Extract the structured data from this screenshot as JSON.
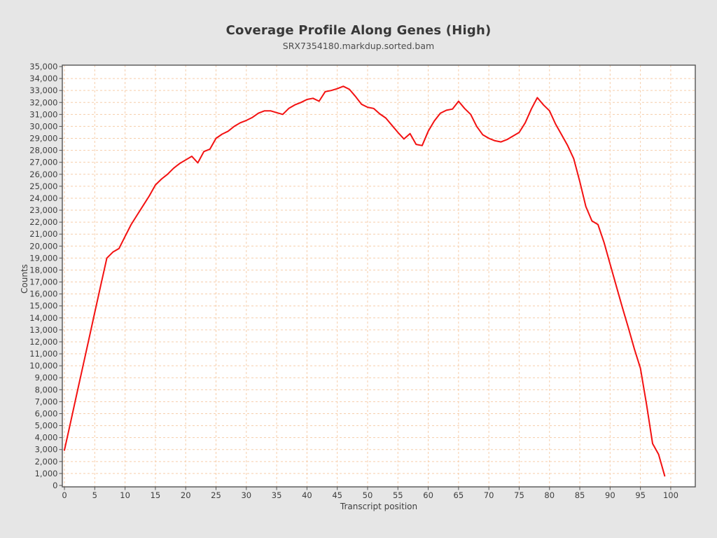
{
  "colors": {
    "page_background": "#e6e6e6",
    "plot_background": "#ffffff",
    "plot_border": "#545454",
    "grid": "#f6cdaa",
    "line": "#f31111",
    "text": "#3e3e3e"
  },
  "chart_data": {
    "type": "line",
    "title": "Coverage Profile Along Genes (High)",
    "subtitle": "SRX7354180.markdup.sorted.bam",
    "xlabel": "Transcript position",
    "ylabel": "Counts",
    "xlim": [
      -0.35,
      104.05
    ],
    "ylim": [
      0,
      35000
    ],
    "x_ticks": [
      0,
      5,
      10,
      15,
      20,
      25,
      30,
      35,
      40,
      45,
      50,
      55,
      60,
      65,
      70,
      75,
      80,
      85,
      90,
      95,
      100
    ],
    "y_tick_step": 1000,
    "grid": {
      "show": true,
      "style": "dashed"
    },
    "legend_position": "none",
    "series": [
      {
        "color": "#f31111",
        "x": [
          0,
          1,
          2,
          3,
          4,
          5,
          6,
          7,
          8,
          9,
          10,
          11,
          12,
          13,
          14,
          15,
          16,
          17,
          18,
          19,
          20,
          21,
          22,
          23,
          24,
          25,
          26,
          27,
          28,
          29,
          30,
          31,
          32,
          33,
          34,
          35,
          36,
          37,
          38,
          39,
          40,
          41,
          42,
          43,
          44,
          45,
          46,
          47,
          48,
          49,
          50,
          51,
          52,
          53,
          54,
          55,
          56,
          57,
          58,
          59,
          60,
          61,
          62,
          63,
          64,
          65,
          66,
          67,
          68,
          69,
          70,
          71,
          72,
          73,
          74,
          75,
          76,
          77,
          78,
          79,
          80,
          81,
          82,
          83,
          84,
          85,
          86,
          87,
          88,
          89,
          90,
          91,
          92,
          93,
          94,
          95,
          96,
          97,
          98,
          99
        ],
        "values": [
          2950,
          5250,
          7550,
          9850,
          12150,
          14450,
          16750,
          19000,
          19500,
          19800,
          20800,
          21800,
          22600,
          23400,
          24200,
          25100,
          25600,
          26000,
          26500,
          26900,
          27200,
          27500,
          26950,
          27900,
          28100,
          29000,
          29350,
          29600,
          30000,
          30300,
          30500,
          30750,
          31100,
          31300,
          31300,
          31150,
          31000,
          31500,
          31800,
          32000,
          32250,
          32350,
          32100,
          32900,
          33000,
          33150,
          33350,
          33100,
          32500,
          31850,
          31600,
          31500,
          31050,
          30700,
          30100,
          29500,
          28950,
          29400,
          28500,
          28400,
          29600,
          30450,
          31100,
          31350,
          31450,
          32100,
          31500,
          31000,
          30000,
          29300,
          29000,
          28800,
          28700,
          28900,
          29200,
          29500,
          30300,
          31450,
          32400,
          31800,
          31300,
          30200,
          29300,
          28400,
          27300,
          25400,
          23300,
          22100,
          21800,
          20300,
          18500,
          16700,
          14900,
          13200,
          11400,
          9800,
          6800,
          3500,
          2600,
          800
        ]
      }
    ]
  }
}
